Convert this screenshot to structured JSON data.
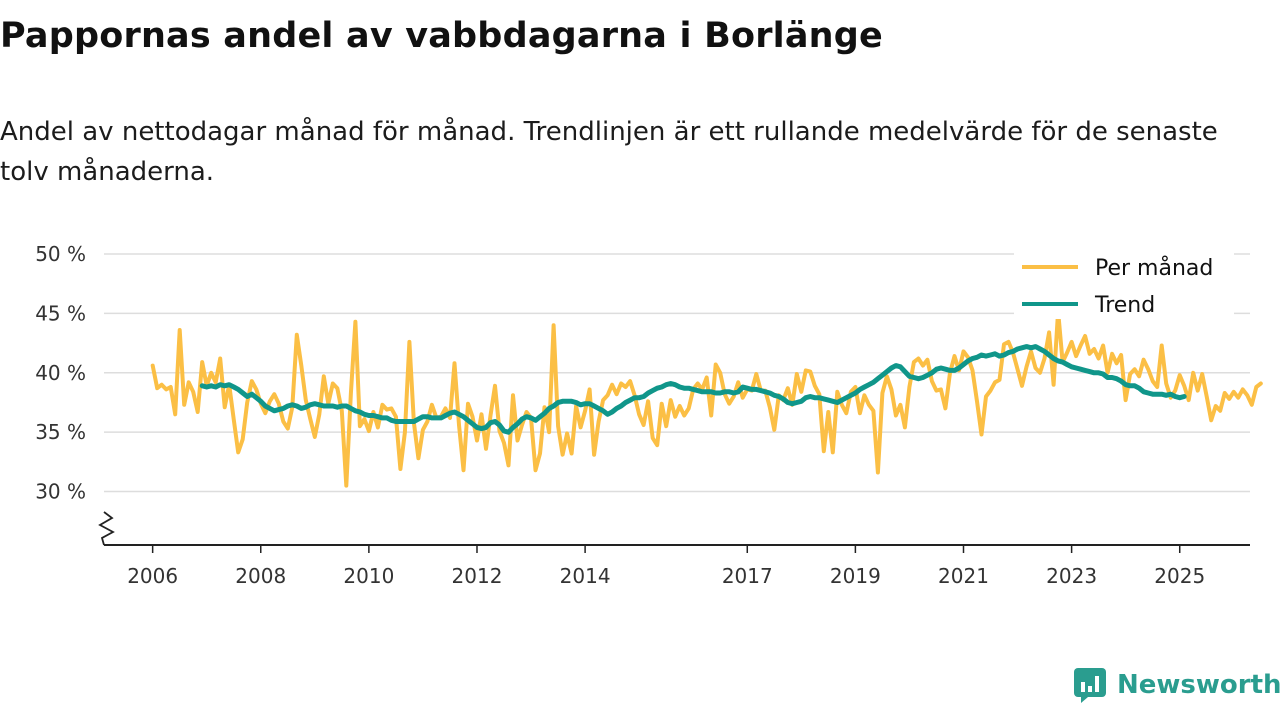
{
  "title": "Pappornas andel av vabbdagarna i Borlänge",
  "subtitle": "Andel av nettodagar månad för månad. Trendlinjen är ett rullande medelvärde för de senaste tolv månaderna.",
  "brand": {
    "name": "Newsworthy"
  },
  "colors": {
    "monthly": "#fbbf45",
    "trend": "#10968a",
    "grid": "#dddddd",
    "axis": "#222222",
    "brand": "#2a9d8f"
  },
  "chart_data": {
    "type": "line",
    "x_unit": "year",
    "ylim": [
      25.5,
      50
    ],
    "yticks": [
      30,
      35,
      40,
      45,
      50
    ],
    "ytick_labels": [
      "30 %",
      "35 %",
      "40 %",
      "45 %",
      "50 %"
    ],
    "xlim": [
      2005.1,
      2026.3
    ],
    "xticks": [
      2006,
      2008,
      2010,
      2012,
      2014,
      2017,
      2019,
      2021,
      2023,
      2025
    ],
    "xtick_labels": [
      "2006",
      "2008",
      "2010",
      "2012",
      "2014",
      "2017",
      "2019",
      "2021",
      "2023",
      "2025"
    ],
    "axis_break": true,
    "grid": true,
    "legend_position": "top-right",
    "series": [
      {
        "name": "Per månad",
        "x_start": 2006.0,
        "step": 0.08333,
        "values": [
          40.6,
          38.7,
          39.0,
          38.6,
          38.8,
          36.5,
          43.6,
          37.3,
          39.2,
          38.4,
          36.7,
          40.9,
          38.9,
          40.0,
          39.2,
          41.2,
          37.1,
          39.0,
          36.1,
          33.3,
          34.4,
          37.5,
          39.3,
          38.6,
          37.4,
          36.6,
          37.6,
          38.2,
          37.4,
          35.9,
          35.3,
          37.1,
          43.2,
          40.6,
          37.7,
          36.1,
          34.6,
          36.5,
          39.7,
          37.4,
          39.1,
          38.7,
          36.8,
          30.5,
          38.3,
          44.3,
          35.5,
          36.1,
          35.1,
          36.7,
          35.4,
          37.3,
          36.9,
          37.0,
          36.3,
          31.9,
          35.0,
          42.6,
          35.8,
          32.8,
          35.2,
          35.9,
          37.3,
          36.2,
          36.3,
          37.0,
          36.2,
          40.8,
          35.6,
          31.8,
          37.4,
          36.3,
          34.3,
          36.5,
          33.6,
          36.4,
          38.9,
          35.1,
          34.1,
          32.2,
          38.1,
          34.3,
          35.6,
          36.7,
          36.2,
          31.8,
          33.2,
          37.1,
          35.0,
          44.0,
          35.5,
          33.1,
          34.9,
          33.2,
          37.2,
          35.4,
          36.8,
          38.6,
          33.1,
          35.9,
          37.7,
          38.1,
          39.0,
          38.2,
          39.1,
          38.8,
          39.3,
          38.1,
          36.5,
          35.6,
          37.6,
          34.5,
          33.9,
          37.4,
          35.5,
          37.7,
          36.3,
          37.2,
          36.4,
          37.0,
          38.6,
          39.1,
          38.6,
          39.6,
          36.4,
          40.7,
          40.0,
          38.2,
          37.4,
          38.0,
          39.2,
          37.9,
          38.6,
          38.5,
          39.9,
          38.5,
          38.5,
          37.1,
          35.2,
          38.1,
          37.7,
          38.7,
          37.3,
          39.9,
          38.4,
          40.2,
          40.1,
          38.9,
          38.2,
          33.4,
          36.7,
          33.3,
          38.4,
          37.3,
          36.6,
          38.4,
          38.8,
          36.6,
          38.1,
          37.3,
          36.8,
          31.6,
          38.3,
          39.7,
          38.6,
          36.4,
          37.3,
          35.4,
          38.8,
          40.9,
          41.2,
          40.6,
          41.1,
          39.3,
          38.5,
          38.6,
          37.0,
          40.0,
          41.4,
          40.2,
          41.8,
          41.3,
          40.2,
          37.6,
          34.8,
          38.0,
          38.5,
          39.2,
          39.4,
          42.4,
          42.6,
          41.7,
          40.3,
          38.9,
          40.5,
          41.8,
          40.4,
          40.0,
          41.2,
          43.4,
          39.0,
          45.2,
          40.9,
          41.7,
          42.6,
          41.4,
          42.3,
          43.1,
          41.6,
          42.0,
          41.2,
          42.3,
          40.0,
          41.6,
          40.8,
          41.5,
          37.7,
          39.9,
          40.3,
          39.7,
          41.1,
          40.3,
          39.3,
          38.8,
          42.3,
          39.1,
          37.9,
          38.5,
          39.8,
          38.9,
          37.7,
          40.0,
          38.5,
          39.9,
          38.0,
          36.0,
          37.2,
          36.8,
          38.3,
          37.8,
          38.4,
          37.9,
          38.6,
          38.1,
          37.3,
          38.8,
          39.1
        ]
      },
      {
        "name": "Trend",
        "x_start": 2006.917,
        "step": 0.08333,
        "values": [
          38.9,
          38.8,
          38.9,
          38.8,
          39.0,
          38.9,
          39.0,
          38.8,
          38.6,
          38.3,
          38.0,
          38.2,
          37.9,
          37.6,
          37.2,
          37.0,
          36.8,
          36.9,
          37.0,
          37.2,
          37.3,
          37.2,
          37.0,
          37.1,
          37.3,
          37.4,
          37.3,
          37.2,
          37.2,
          37.2,
          37.1,
          37.2,
          37.2,
          37.0,
          36.8,
          36.7,
          36.5,
          36.4,
          36.4,
          36.3,
          36.2,
          36.2,
          36.0,
          35.9,
          35.9,
          35.9,
          35.9,
          35.9,
          36.1,
          36.3,
          36.3,
          36.2,
          36.2,
          36.2,
          36.4,
          36.6,
          36.7,
          36.5,
          36.3,
          36.0,
          35.7,
          35.4,
          35.3,
          35.4,
          35.8,
          35.9,
          35.6,
          35.1,
          35.0,
          35.4,
          35.7,
          36.1,
          36.3,
          36.2,
          36.0,
          36.3,
          36.6,
          37.0,
          37.2,
          37.5,
          37.6,
          37.6,
          37.6,
          37.5,
          37.3,
          37.4,
          37.4,
          37.2,
          37.0,
          36.8,
          36.5,
          36.7,
          37.0,
          37.2,
          37.5,
          37.7,
          37.9,
          37.9,
          38.0,
          38.3,
          38.5,
          38.7,
          38.8,
          39.0,
          39.1,
          39.0,
          38.8,
          38.7,
          38.7,
          38.6,
          38.5,
          38.4,
          38.4,
          38.4,
          38.3,
          38.3,
          38.4,
          38.4,
          38.3,
          38.4,
          38.8,
          38.7,
          38.6,
          38.6,
          38.5,
          38.4,
          38.3,
          38.1,
          38.0,
          37.8,
          37.5,
          37.4,
          37.5,
          37.6,
          37.9,
          38.0,
          37.9,
          37.9,
          37.8,
          37.7,
          37.6,
          37.5,
          37.7,
          37.9,
          38.1,
          38.3,
          38.6,
          38.8,
          39.0,
          39.2,
          39.5,
          39.8,
          40.1,
          40.4,
          40.6,
          40.5,
          40.1,
          39.7,
          39.6,
          39.5,
          39.6,
          39.8,
          40.0,
          40.3,
          40.4,
          40.3,
          40.2,
          40.2,
          40.4,
          40.7,
          41.0,
          41.2,
          41.3,
          41.5,
          41.4,
          41.5,
          41.6,
          41.4,
          41.5,
          41.7,
          41.8,
          42.0,
          42.1,
          42.2,
          42.1,
          42.2,
          42.0,
          41.8,
          41.5,
          41.2,
          41.0,
          40.9,
          40.7,
          40.5,
          40.4,
          40.3,
          40.2,
          40.1,
          40.0,
          40.0,
          39.9,
          39.6,
          39.6,
          39.5,
          39.3,
          39.0,
          38.9,
          38.9,
          38.7,
          38.4,
          38.3,
          38.2,
          38.2,
          38.2,
          38.1,
          38.2,
          38.0,
          37.9,
          38.0
        ]
      }
    ]
  }
}
